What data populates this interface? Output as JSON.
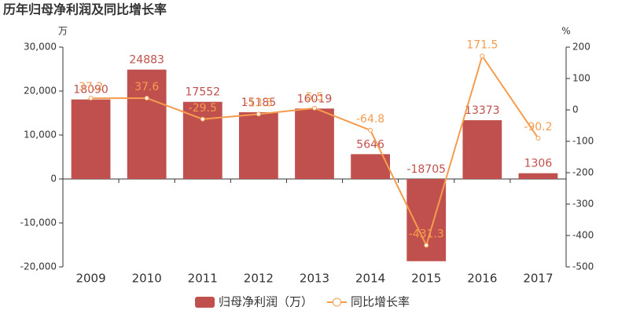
{
  "chart_data": {
    "type": "bar",
    "title": "历年归母净利润及同比增长率",
    "y_label": "万",
    "y2_label": "%",
    "categories": [
      "2009",
      "2010",
      "2011",
      "2012",
      "2013",
      "2014",
      "2015",
      "2016",
      "2017"
    ],
    "series": [
      {
        "name": "归母净利润（万）",
        "type": "bar",
        "color": "#c0504d",
        "values": [
          18090,
          24883,
          17552,
          15185,
          16019,
          5646,
          -18705,
          13373,
          1306
        ]
      },
      {
        "name": "同比增长率",
        "type": "line",
        "axis": "y2",
        "color": "#f59c4f",
        "values": [
          37.2,
          37.6,
          -29.5,
          -13.5,
          5.5,
          -64.8,
          -431.3,
          171.5,
          -90.2
        ]
      }
    ],
    "ylim": [
      -20000,
      30000
    ],
    "yticks": [
      {
        "value": -20000,
        "label": "-20,000"
      },
      {
        "value": -10000,
        "label": "-10,000"
      },
      0,
      {
        "value": 10000,
        "label": "10,000"
      },
      {
        "value": 20000,
        "label": "20,000"
      },
      {
        "value": 30000,
        "label": "30,000"
      }
    ],
    "y2lim": [
      -500,
      200
    ],
    "y2ticks": [
      -500,
      -400,
      -300,
      -200,
      -100,
      0,
      100,
      200
    ]
  }
}
